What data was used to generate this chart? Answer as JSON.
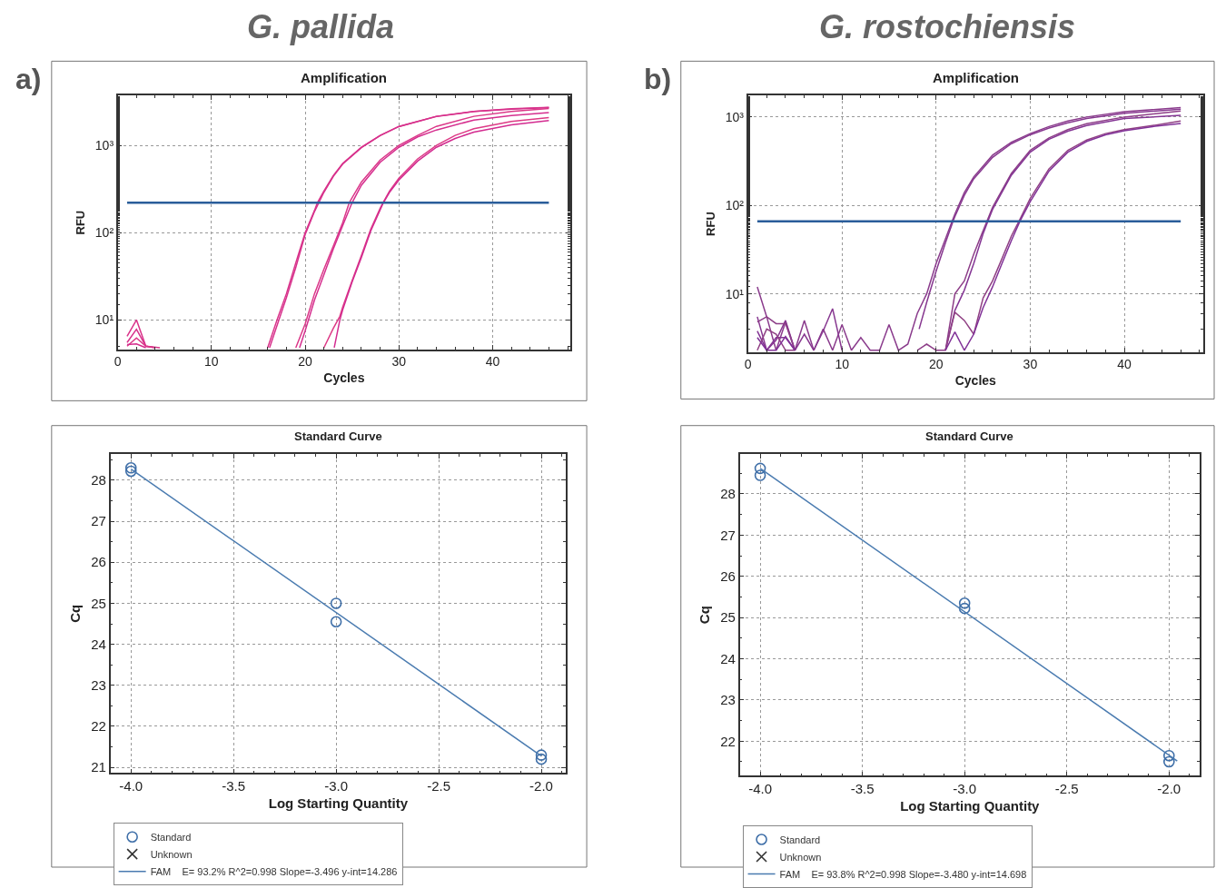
{
  "chart_data": [
    {
      "type": "line",
      "title": "Amplification",
      "subtitle": "G. pallida",
      "annotations": [
        "a)"
      ],
      "xlabel": "Cycles",
      "ylabel": "RFU",
      "log": "y",
      "xlim": [
        0,
        48.3
      ],
      "xticks": [
        0,
        10,
        20,
        30,
        40
      ],
      "ylim": [
        4.6,
        3700
      ],
      "yticks": [
        {
          "value": 10,
          "label": "10¹"
        },
        {
          "value": 100,
          "label": "10²"
        },
        {
          "value": 1000,
          "label": "10³"
        }
      ],
      "grid": true,
      "ref_lines": [
        {
          "axis": "y",
          "value": 220,
          "color": "#2a5d9a"
        }
      ],
      "series": [
        {
          "color": "#d9348a",
          "x": [
            1,
            2,
            3,
            4.5,
            10,
            16,
            17,
            18,
            19,
            20,
            21,
            21.3,
            22,
            23,
            24,
            26,
            28,
            30,
            34,
            38,
            42,
            46
          ],
          "values": [
            6.5,
            10,
            5,
            4.8,
            null,
            4.8,
            10,
            20,
            45,
            100,
            180,
            220,
            300,
            450,
            620,
            950,
            1300,
            1650,
            2150,
            2450,
            2620,
            2720
          ]
        },
        {
          "color": "#d7318c",
          "x": [
            1,
            2,
            3,
            4,
            10,
            16.2,
            17.2,
            18,
            19,
            20,
            21,
            22,
            23,
            24,
            26,
            28,
            30,
            34,
            38,
            42,
            46
          ],
          "values": [
            5.5,
            7.8,
            5,
            4.8,
            null,
            4.8,
            10,
            18,
            40,
            95,
            175,
            290,
            440,
            610,
            940,
            1290,
            1640,
            2140,
            2440,
            2600,
            2700
          ]
        },
        {
          "color": "#db3788",
          "x": [
            1,
            2,
            3,
            4,
            10,
            19,
            19.6,
            20,
            21,
            22,
            23,
            24,
            24.7,
            25,
            26,
            28,
            30,
            32,
            34,
            38,
            42,
            46
          ],
          "values": [
            5,
            6.2,
            5,
            4.8,
            null,
            4.8,
            7,
            9,
            20,
            38,
            70,
            130,
            220,
            250,
            380,
            680,
            1000,
            1300,
            1650,
            2150,
            2450,
            2650
          ]
        },
        {
          "color": "#d52e8e",
          "x": [
            1,
            2,
            3,
            10,
            19.4,
            20,
            21,
            22,
            23,
            24,
            25,
            26,
            28,
            30,
            32,
            34,
            38,
            42,
            46
          ],
          "values": [
            5.2,
            5.3,
            4.8,
            null,
            4.8,
            7.5,
            17,
            33,
            65,
            120,
            220,
            350,
            640,
            950,
            1250,
            1500,
            1950,
            2200,
            2380
          ]
        },
        {
          "color": "#dd3a86",
          "x": [
            22,
            23,
            23.7,
            24,
            25,
            26,
            27,
            28,
            28.3,
            29,
            30,
            32,
            34,
            36,
            38,
            42,
            46
          ],
          "values": [
            4.8,
            8,
            11,
            14,
            28,
            55,
            110,
            190,
            220,
            300,
            420,
            700,
            1000,
            1300,
            1550,
            1880,
            2080
          ]
        },
        {
          "color": "#d32b90",
          "x": [
            23.1,
            23.7,
            24,
            25,
            26,
            27,
            28.3,
            29,
            30,
            32,
            34,
            36,
            38,
            42,
            46
          ],
          "values": [
            4.8,
            10,
            13,
            27,
            52,
            105,
            215,
            290,
            400,
            660,
            950,
            1200,
            1420,
            1720,
            1920
          ]
        }
      ]
    },
    {
      "type": "line",
      "title": "Amplification",
      "subtitle": "G. rostochiensis",
      "annotations": [
        "b)"
      ],
      "xlabel": "Cycles",
      "ylabel": "RFU",
      "log": "y",
      "xlim": [
        0,
        48.4
      ],
      "xticks": [
        0,
        10,
        20,
        30,
        40
      ],
      "ylim": [
        2.2,
        1740
      ],
      "yticks": [
        {
          "value": 10,
          "label": "10¹"
        },
        {
          "value": 100,
          "label": "10²"
        },
        {
          "value": 1000,
          "label": "10³"
        }
      ],
      "grid": true,
      "ref_lines": [
        {
          "axis": "y",
          "value": 66,
          "color": "#2a5d9a"
        }
      ],
      "series": [
        {
          "color": "#8a3b8c",
          "x": [
            1,
            2,
            3,
            4,
            5,
            6,
            7,
            8,
            9,
            10,
            11,
            12,
            13,
            14,
            15,
            16,
            17,
            18,
            19,
            20,
            21,
            21.7,
            22,
            23,
            24,
            26,
            28,
            30,
            32,
            34,
            36,
            40,
            46
          ],
          "values": [
            12,
            5.5,
            2.3,
            4.8,
            2.3,
            5,
            2.3,
            4,
            2.3,
            4.5,
            2.3,
            3.2,
            2.3,
            2.3,
            4.5,
            2.3,
            2.7,
            6,
            10,
            22,
            42,
            66,
            80,
            140,
            210,
            370,
            520,
            650,
            780,
            900,
            1000,
            1150,
            1280
          ]
        },
        {
          "color": "#873890",
          "x": [
            1,
            2,
            3,
            4,
            5,
            6,
            7,
            8,
            9,
            10,
            14,
            18.2,
            19,
            20,
            21,
            21.8,
            22,
            23,
            24,
            26,
            28,
            30,
            32,
            34,
            36,
            40,
            46
          ],
          "values": [
            5.5,
            2.3,
            3,
            5,
            2.3,
            3.5,
            2.3,
            3.8,
            6.8,
            2.3,
            null,
            4,
            8,
            18,
            38,
            66,
            75,
            130,
            200,
            350,
            500,
            630,
            750,
            860,
            960,
            1100,
            1230
          ]
        },
        {
          "color": "#8d3e88",
          "x": [
            1,
            2,
            3,
            4,
            5,
            12,
            18,
            19,
            20,
            21,
            22,
            23,
            24,
            25,
            25.4,
            26,
            28,
            30,
            32,
            34,
            36,
            40,
            46
          ],
          "values": [
            4.8,
            5.5,
            4.6,
            4.6,
            2.3,
            null,
            2.3,
            2.7,
            2.3,
            2.3,
            10,
            14,
            28,
            52,
            66,
            95,
            230,
            420,
            580,
            720,
            840,
            1000,
            1170
          ]
        },
        {
          "color": "#843594",
          "x": [
            1,
            2,
            3,
            4,
            5,
            12,
            21,
            22,
            23,
            24,
            25,
            25.5,
            26,
            28,
            30,
            32,
            34,
            36,
            40,
            46
          ],
          "values": [
            3.8,
            2.3,
            3.2,
            3.2,
            2.3,
            null,
            2.3,
            6.5,
            11,
            22,
            48,
            66,
            90,
            220,
            400,
            560,
            690,
            800,
            960,
            1045
          ]
        },
        {
          "color": "#904184",
          "x": [
            1,
            2,
            3,
            4,
            5,
            12,
            21,
            22,
            23,
            24,
            25,
            26,
            27,
            28,
            28.8,
            30,
            32,
            34,
            36,
            38,
            40,
            43,
            46
          ],
          "values": [
            2.3,
            4,
            3.5,
            2.3,
            2.3,
            null,
            2.3,
            6.2,
            5,
            3.5,
            9,
            14,
            25,
            45,
            66,
            120,
            260,
            420,
            550,
            650,
            720,
            800,
            900
          ]
        },
        {
          "color": "#813298",
          "x": [
            1,
            2,
            3,
            4,
            5,
            12,
            21,
            22,
            23,
            24,
            25,
            26,
            27,
            28,
            28.9,
            30,
            32,
            34,
            36,
            38,
            40,
            43,
            46
          ],
          "values": [
            3.2,
            2.3,
            2.3,
            3.3,
            2.3,
            null,
            2.3,
            3.7,
            2.3,
            3.5,
            7,
            12,
            22,
            40,
            66,
            110,
            245,
            400,
            530,
            630,
            700,
            780,
            845
          ]
        }
      ]
    },
    {
      "type": "scatter",
      "title": "Standard Curve",
      "xlabel": "Log Starting Quantity",
      "ylabel": "Cq",
      "xlim": [
        -4.1,
        -1.88
      ],
      "xticks": [
        {
          "value": -4,
          "label": "-4.0"
        },
        {
          "value": -3.5,
          "label": "-3.5"
        },
        {
          "value": -3,
          "label": "-3.0"
        },
        {
          "value": -2.5,
          "label": "-2.5"
        },
        {
          "value": -2,
          "label": "-2.0"
        }
      ],
      "ylim": [
        20.86,
        28.64
      ],
      "yticks": [
        21,
        22,
        23,
        24,
        25,
        26,
        27,
        28
      ],
      "grid": true,
      "legend": "bottom",
      "series": [
        {
          "name": "Standard",
          "type": "scatter",
          "marker": "circle",
          "color": "#3f6fa8",
          "x": [
            -4,
            -4,
            -3,
            -3,
            -2,
            -2
          ],
          "values": [
            28.3,
            28.22,
            25.0,
            24.55,
            21.3,
            21.2
          ]
        },
        {
          "name": "Unknown",
          "type": "scatter",
          "marker": "cross",
          "color": "#333333"
        },
        {
          "name": "FAM    E= 93.2% R^2=0.998 Slope=-3.496 y-int=14.286",
          "type": "line",
          "color": "#4a7bb0",
          "x": [
            -4,
            -2
          ],
          "values": [
            28.27,
            21.28
          ]
        }
      ]
    },
    {
      "type": "scatter",
      "title": "Standard Curve",
      "xlabel": "Log Starting Quantity",
      "ylabel": "Cq",
      "xlim": [
        -4.1,
        -1.85
      ],
      "xticks": [
        {
          "value": -4,
          "label": "-4.0"
        },
        {
          "value": -3.5,
          "label": "-3.5"
        },
        {
          "value": -3,
          "label": "-3.0"
        },
        {
          "value": -2.5,
          "label": "-2.5"
        },
        {
          "value": -2,
          "label": "-2.0"
        }
      ],
      "ylim": [
        21.16,
        28.97
      ],
      "yticks": [
        22,
        23,
        24,
        25,
        26,
        27,
        28
      ],
      "grid": true,
      "legend": "bottom",
      "series": [
        {
          "name": "Standard",
          "type": "scatter",
          "marker": "circle",
          "color": "#3f6fa8",
          "x": [
            -4,
            -4,
            -3,
            -3,
            -2,
            -2
          ],
          "values": [
            28.62,
            28.45,
            25.35,
            25.22,
            21.65,
            21.5
          ]
        },
        {
          "name": "Unknown",
          "type": "scatter",
          "marker": "cross",
          "color": "#333333"
        },
        {
          "name": "FAM    E= 93.8% R^2=0.998 Slope=-3.480 y-int=14.698",
          "type": "line",
          "color": "#4a7bb0",
          "x": [
            -4,
            -1.96
          ],
          "values": [
            28.62,
            21.52
          ]
        }
      ]
    }
  ]
}
